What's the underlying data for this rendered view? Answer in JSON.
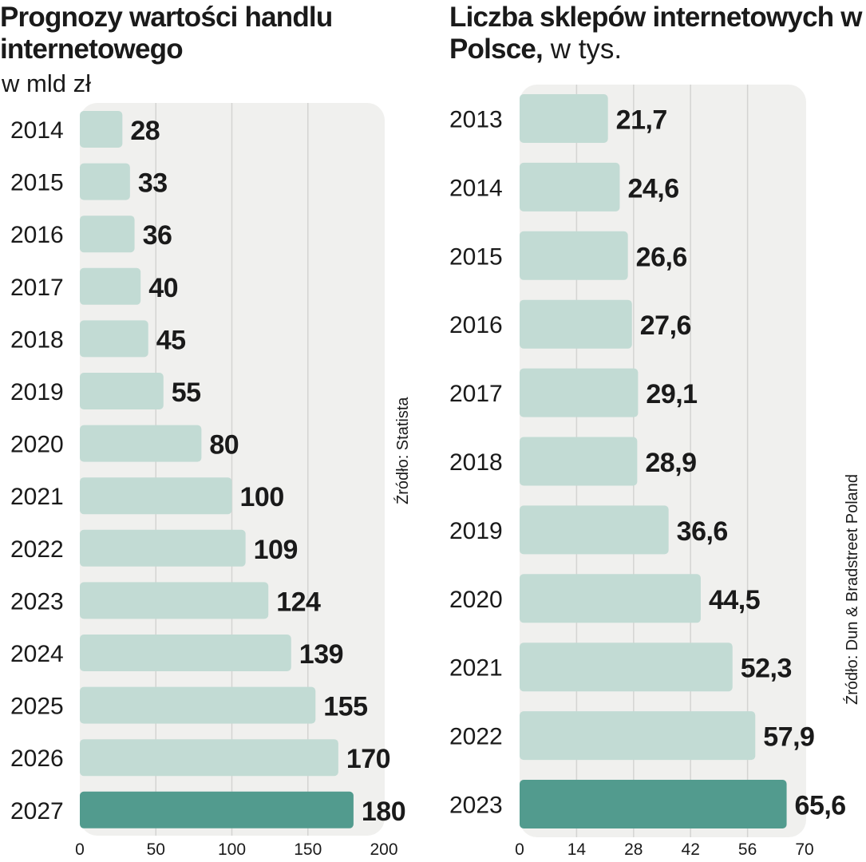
{
  "colors": {
    "panel": "#f0f0ee",
    "bar": "#c2dbd4",
    "bar_highlight": "#529b8e",
    "grid": "#d4d4d2"
  },
  "left_chart": {
    "title": "Prognozy wartości handlu internetowego",
    "subtitle": "w mld zł",
    "source": "Źródło: Statista"
  },
  "right_chart": {
    "title": "Liczba sklepów internetowych w Polsce,",
    "title_unit": " w tys.",
    "source": "Źródło: Dun & Bradstreet Poland"
  },
  "chart_data": [
    {
      "type": "bar",
      "orientation": "horizontal",
      "title": "Prognozy wartości handlu internetowego",
      "subtitle": "w mld zł",
      "categories": [
        "2014",
        "2015",
        "2016",
        "2017",
        "2018",
        "2019",
        "2020",
        "2021",
        "2022",
        "2023",
        "2024",
        "2025",
        "2026",
        "2027"
      ],
      "values": [
        28,
        33,
        36,
        40,
        45,
        55,
        80,
        100,
        109,
        124,
        139,
        155,
        170,
        180
      ],
      "labels": [
        "28",
        "33",
        "36",
        "40",
        "45",
        "55",
        "80",
        "100",
        "109",
        "124",
        "139",
        "155",
        "170",
        "180"
      ],
      "highlight_index": 13,
      "xlim": [
        0,
        200
      ],
      "ticks": [
        0,
        50,
        100,
        150,
        200
      ],
      "tick_labels": [
        "0",
        "50",
        "100",
        "150",
        "200"
      ],
      "grid": true,
      "source": "Źródło: Statista"
    },
    {
      "type": "bar",
      "orientation": "horizontal",
      "title": "Liczba sklepów internetowych w Polsce",
      "subtitle": "w tys.",
      "categories": [
        "2013",
        "2014",
        "2015",
        "2016",
        "2017",
        "2018",
        "2019",
        "2020",
        "2021",
        "2022",
        "2023"
      ],
      "values": [
        21.7,
        24.6,
        26.6,
        27.6,
        29.1,
        28.9,
        36.6,
        44.5,
        52.3,
        57.9,
        65.6
      ],
      "labels": [
        "21,7",
        "24,6",
        "26,6",
        "27,6",
        "29,1",
        "28,9",
        "36,6",
        "44,5",
        "52,3",
        "57,9",
        "65,6"
      ],
      "highlight_index": 10,
      "xlim": [
        0,
        70
      ],
      "ticks": [
        0,
        14,
        28,
        42,
        56,
        70
      ],
      "tick_labels": [
        "0",
        "14",
        "28",
        "42",
        "56",
        "70"
      ],
      "grid": true,
      "source": "Źródło: Dun & Bradstreet Poland"
    }
  ]
}
